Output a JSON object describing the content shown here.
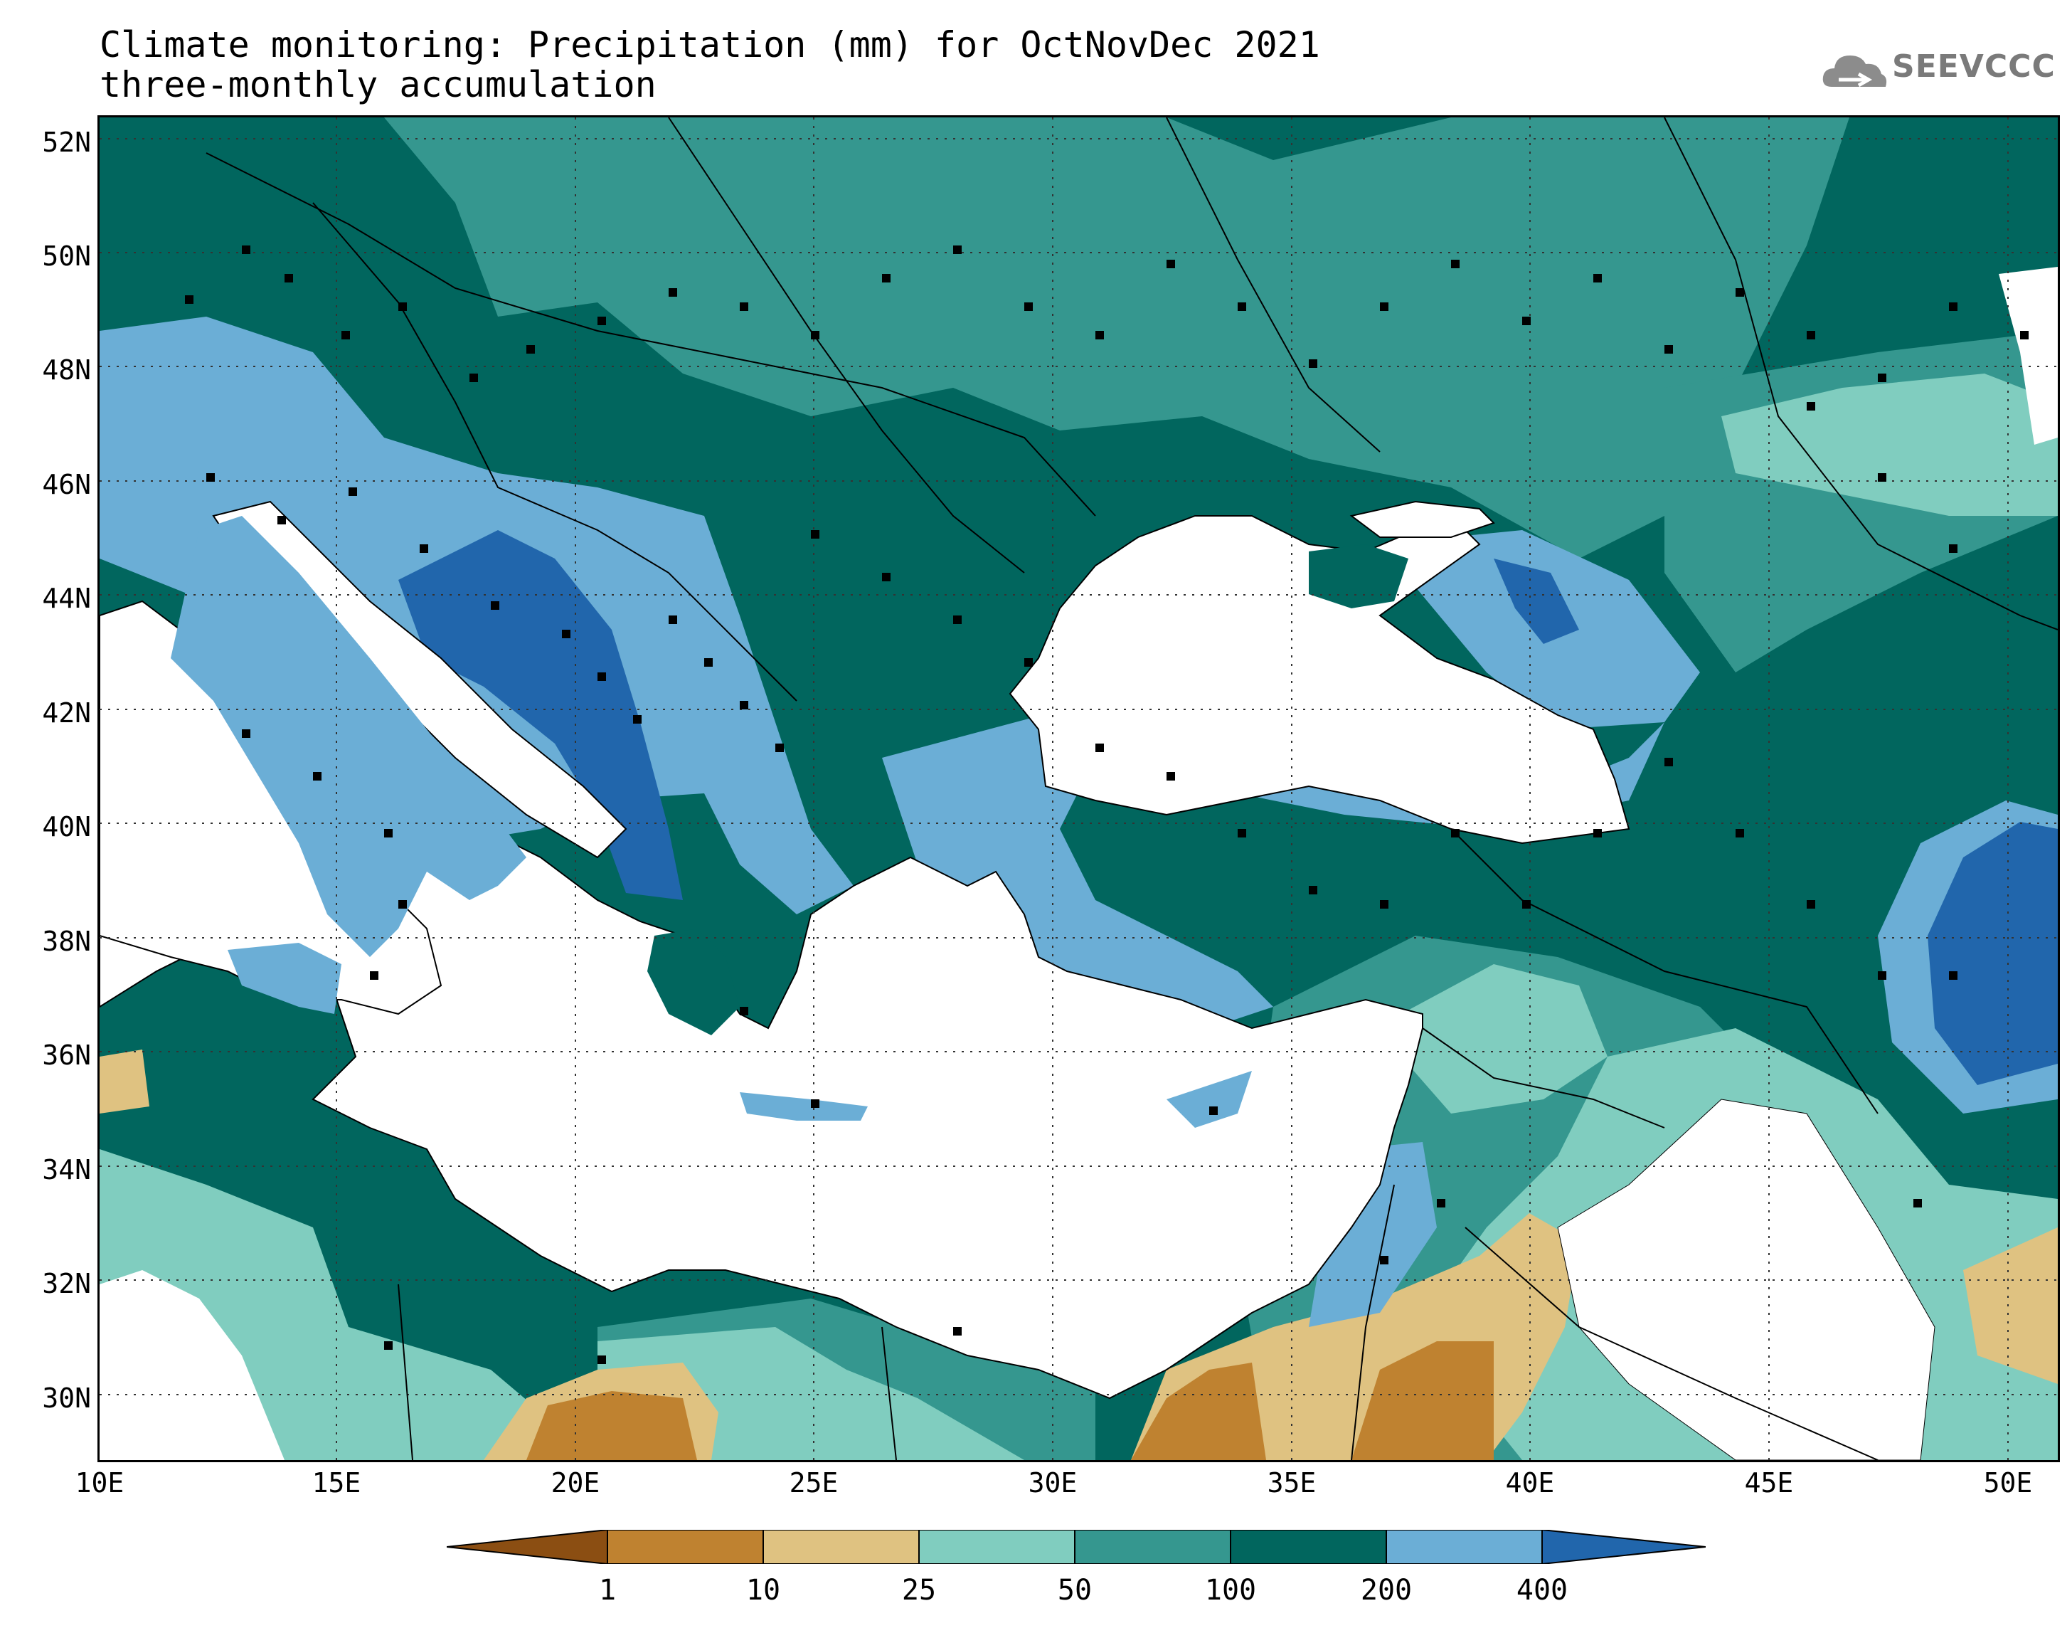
{
  "title": {
    "line1": "Climate monitoring: Precipitation (mm) for OctNovDec 2021",
    "line2": "three-monthly accumulation"
  },
  "logo": {
    "text": "SEEVCCC",
    "icon": "cloud-icon"
  },
  "map": {
    "lon_range": [
      10,
      51
    ],
    "lat_range": [
      29,
      52.5
    ],
    "gridlines": "dotted",
    "lat_ticks": [
      "52N",
      "50N",
      "48N",
      "46N",
      "44N",
      "42N",
      "40N",
      "38N",
      "36N",
      "34N",
      "32N",
      "30N"
    ],
    "lon_ticks": [
      "10E",
      "15E",
      "20E",
      "25E",
      "30E",
      "35E",
      "40E",
      "45E",
      "50E"
    ],
    "stations_shown": true
  },
  "legend": {
    "classes": [
      {
        "range": "< 1",
        "color": "#8B4E12"
      },
      {
        "range": "1-10",
        "color": "#BF8230"
      },
      {
        "range": "10-25",
        "color": "#DFC281"
      },
      {
        "range": "25-50",
        "color": "#80CDBF"
      },
      {
        "range": "50-100",
        "color": "#35978F"
      },
      {
        "range": "100-200",
        "color": "#01665E"
      },
      {
        "range": "200-400",
        "color": "#6BAED6"
      },
      {
        "range": "> 400",
        "color": "#2166AC"
      }
    ],
    "tick_labels": [
      "1",
      "10",
      "25",
      "50",
      "100",
      "200",
      "400"
    ]
  }
}
